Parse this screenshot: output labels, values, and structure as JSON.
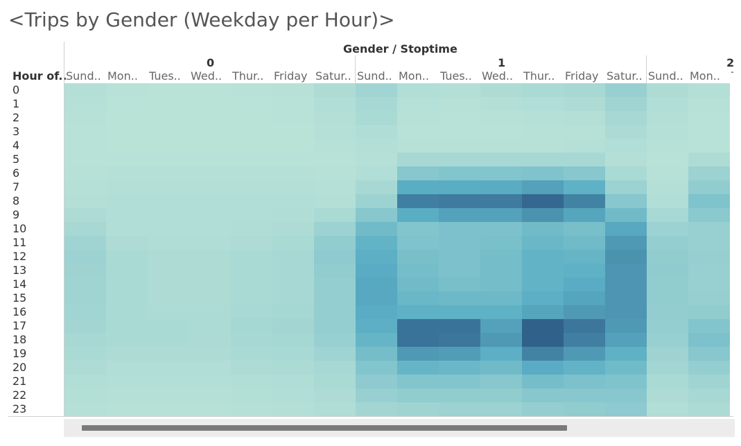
{
  "title": "<Trips by Gender (Weekday per Hour)>",
  "axis_title": "Gender / Stoptime",
  "row_header": "Hour of..",
  "groups": [
    "0",
    "1",
    "2"
  ],
  "day_labels": [
    "Sund..",
    "Mon..",
    "Tues..",
    "Wed..",
    "Thur..",
    "Friday",
    "Satur.."
  ],
  "colors": {
    "low": "#bce4d8",
    "mid": "#5aaec4",
    "high": "#2c5985"
  },
  "chart_data": {
    "type": "heatmap",
    "title": "<Trips by Gender (Weekday per Hour)>",
    "xlabel": "Gender / Stoptime",
    "ylabel": "Hour of..",
    "x_groups": [
      "0",
      "1",
      "2"
    ],
    "x_days": [
      "Sund..",
      "Mon..",
      "Tues..",
      "Wed..",
      "Thur..",
      "Friday",
      "Satur.."
    ],
    "y": [
      "0",
      "1",
      "2",
      "3",
      "4",
      "5",
      "6",
      "7",
      "8",
      "9",
      "10",
      "11",
      "12",
      "13",
      "14",
      "15",
      "16",
      "17",
      "18",
      "19",
      "20",
      "21",
      "22",
      "23"
    ],
    "value_scale": "relative trip intensity 0-1",
    "values": [
      [
        [
          0.05,
          0.02,
          0.01,
          0.01,
          0.02,
          0.03,
          0.08
        ],
        [
          0.15,
          0.06,
          0.05,
          0.08,
          0.1,
          0.12,
          0.2
        ],
        [
          0.08,
          0.05
        ]
      ],
      [
        [
          0.04,
          0.01,
          0.01,
          0.01,
          0.01,
          0.02,
          0.06
        ],
        [
          0.12,
          0.04,
          0.03,
          0.05,
          0.06,
          0.08,
          0.16
        ],
        [
          0.06,
          0.03
        ]
      ],
      [
        [
          0.03,
          0.01,
          0.01,
          0.01,
          0.01,
          0.02,
          0.05
        ],
        [
          0.1,
          0.03,
          0.02,
          0.03,
          0.04,
          0.05,
          0.12
        ],
        [
          0.05,
          0.02
        ]
      ],
      [
        [
          0.02,
          0.01,
          0.01,
          0.01,
          0.01,
          0.01,
          0.04
        ],
        [
          0.07,
          0.02,
          0.02,
          0.02,
          0.03,
          0.03,
          0.09
        ],
        [
          0.04,
          0.02
        ]
      ],
      [
        [
          0.02,
          0.01,
          0.01,
          0.01,
          0.01,
          0.01,
          0.03
        ],
        [
          0.05,
          0.03,
          0.03,
          0.03,
          0.03,
          0.04,
          0.06
        ],
        [
          0.03,
          0.02
        ]
      ],
      [
        [
          0.02,
          0.02,
          0.02,
          0.02,
          0.02,
          0.02,
          0.02
        ],
        [
          0.04,
          0.12,
          0.12,
          0.12,
          0.12,
          0.12,
          0.05
        ],
        [
          0.02,
          0.08
        ]
      ],
      [
        [
          0.03,
          0.04,
          0.04,
          0.04,
          0.04,
          0.04,
          0.03
        ],
        [
          0.06,
          0.3,
          0.32,
          0.32,
          0.34,
          0.3,
          0.1
        ],
        [
          0.03,
          0.18
        ]
      ],
      [
        [
          0.04,
          0.05,
          0.05,
          0.05,
          0.05,
          0.05,
          0.04
        ],
        [
          0.12,
          0.55,
          0.55,
          0.56,
          0.62,
          0.52,
          0.18
        ],
        [
          0.05,
          0.24
        ]
      ],
      [
        [
          0.05,
          0.06,
          0.06,
          0.06,
          0.06,
          0.06,
          0.05
        ],
        [
          0.18,
          0.8,
          0.82,
          0.82,
          0.92,
          0.78,
          0.3
        ],
        [
          0.06,
          0.34
        ]
      ],
      [
        [
          0.08,
          0.06,
          0.06,
          0.06,
          0.06,
          0.07,
          0.1
        ],
        [
          0.3,
          0.55,
          0.62,
          0.62,
          0.7,
          0.6,
          0.42
        ],
        [
          0.12,
          0.28
        ]
      ],
      [
        [
          0.12,
          0.06,
          0.06,
          0.06,
          0.07,
          0.08,
          0.18
        ],
        [
          0.42,
          0.32,
          0.36,
          0.36,
          0.42,
          0.38,
          0.58
        ],
        [
          0.18,
          0.2
        ]
      ],
      [
        [
          0.16,
          0.08,
          0.07,
          0.07,
          0.08,
          0.1,
          0.24
        ],
        [
          0.5,
          0.34,
          0.36,
          0.37,
          0.46,
          0.42,
          0.66
        ],
        [
          0.22,
          0.2
        ]
      ],
      [
        [
          0.18,
          0.1,
          0.08,
          0.08,
          0.1,
          0.12,
          0.26
        ],
        [
          0.54,
          0.38,
          0.36,
          0.4,
          0.5,
          0.48,
          0.7
        ],
        [
          0.24,
          0.21
        ]
      ],
      [
        [
          0.17,
          0.1,
          0.08,
          0.08,
          0.1,
          0.12,
          0.24
        ],
        [
          0.56,
          0.4,
          0.36,
          0.4,
          0.5,
          0.52,
          0.68
        ],
        [
          0.25,
          0.2
        ]
      ],
      [
        [
          0.16,
          0.1,
          0.08,
          0.08,
          0.1,
          0.12,
          0.22
        ],
        [
          0.58,
          0.42,
          0.38,
          0.4,
          0.5,
          0.56,
          0.68
        ],
        [
          0.24,
          0.2
        ]
      ],
      [
        [
          0.16,
          0.1,
          0.08,
          0.08,
          0.1,
          0.12,
          0.22
        ],
        [
          0.58,
          0.46,
          0.44,
          0.44,
          0.54,
          0.6,
          0.68
        ],
        [
          0.24,
          0.21
        ]
      ],
      [
        [
          0.15,
          0.1,
          0.09,
          0.09,
          0.11,
          0.13,
          0.22
        ],
        [
          0.56,
          0.52,
          0.52,
          0.52,
          0.6,
          0.66,
          0.68
        ],
        [
          0.23,
          0.24
        ]
      ],
      [
        [
          0.14,
          0.1,
          0.1,
          0.09,
          0.13,
          0.14,
          0.22
        ],
        [
          0.54,
          0.86,
          0.86,
          0.62,
          0.96,
          0.84,
          0.66
        ],
        [
          0.22,
          0.32
        ]
      ],
      [
        [
          0.12,
          0.1,
          0.1,
          0.09,
          0.12,
          0.13,
          0.2
        ],
        [
          0.48,
          0.86,
          0.84,
          0.66,
          0.96,
          0.8,
          0.62
        ],
        [
          0.2,
          0.36
        ]
      ],
      [
        [
          0.1,
          0.08,
          0.08,
          0.08,
          0.1,
          0.11,
          0.16
        ],
        [
          0.4,
          0.66,
          0.64,
          0.54,
          0.78,
          0.66,
          0.52
        ],
        [
          0.17,
          0.3
        ]
      ],
      [
        [
          0.08,
          0.06,
          0.06,
          0.06,
          0.08,
          0.09,
          0.12
        ],
        [
          0.32,
          0.48,
          0.46,
          0.42,
          0.56,
          0.5,
          0.42
        ],
        [
          0.14,
          0.22
        ]
      ],
      [
        [
          0.06,
          0.05,
          0.05,
          0.05,
          0.06,
          0.07,
          0.1
        ],
        [
          0.26,
          0.32,
          0.32,
          0.3,
          0.4,
          0.36,
          0.34
        ],
        [
          0.1,
          0.16
        ]
      ],
      [
        [
          0.05,
          0.04,
          0.04,
          0.04,
          0.05,
          0.06,
          0.08
        ],
        [
          0.2,
          0.24,
          0.24,
          0.24,
          0.3,
          0.3,
          0.3
        ],
        [
          0.08,
          0.12
        ]
      ],
      [
        [
          0.04,
          0.03,
          0.03,
          0.03,
          0.04,
          0.05,
          0.07
        ],
        [
          0.14,
          0.16,
          0.18,
          0.18,
          0.22,
          0.24,
          0.26
        ],
        [
          0.06,
          0.09
        ]
      ]
    ],
    "grid": false,
    "legend": "none"
  }
}
